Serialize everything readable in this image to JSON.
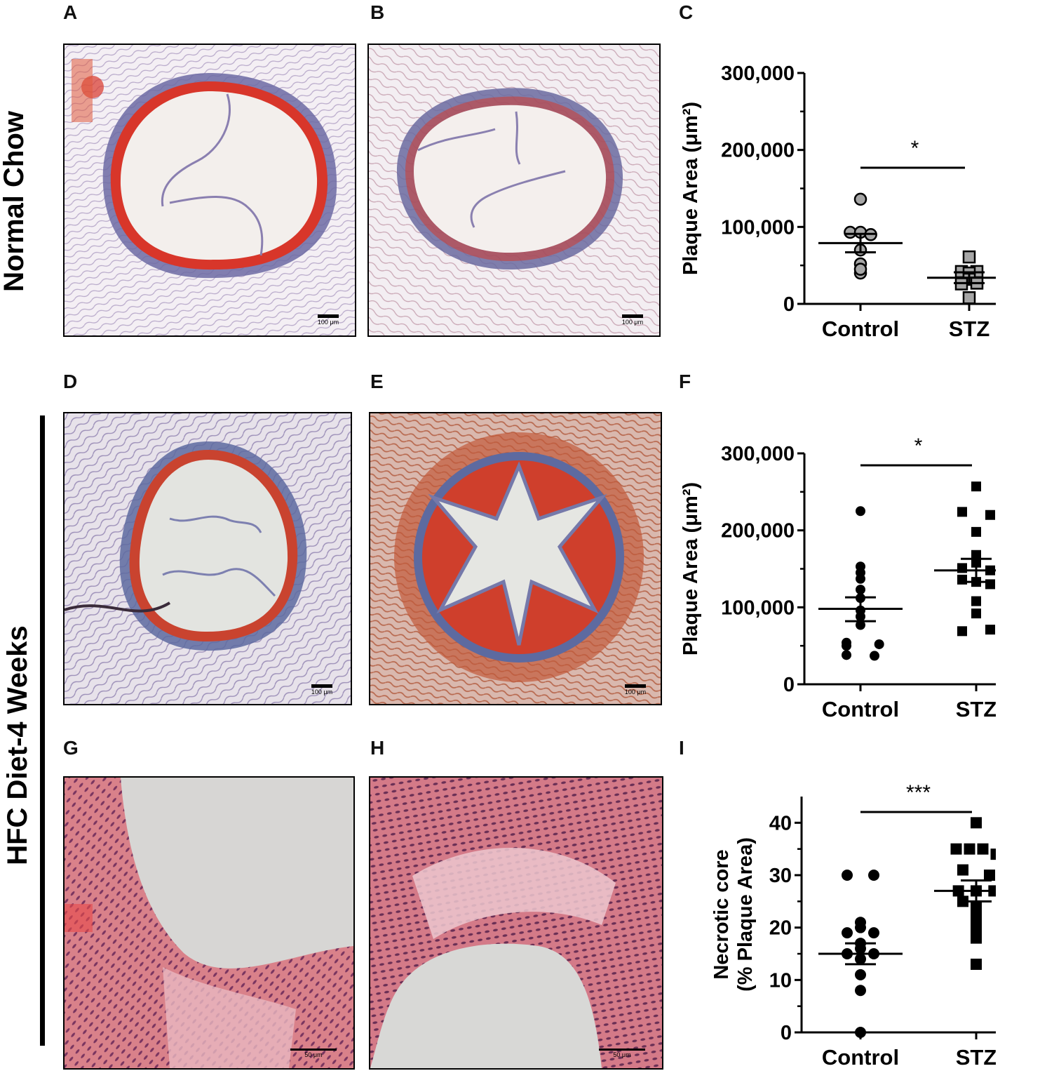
{
  "panels": {
    "A": "A",
    "B": "B",
    "C": "C",
    "D": "D",
    "E": "E",
    "F": "F",
    "G": "G",
    "H": "H",
    "I": "I"
  },
  "row_labels": {
    "row1": "Normal Chow",
    "rows23": "HFC Diet-4 Weeks"
  },
  "scale_bars": {
    "A": "100 μm",
    "B": "100 μm",
    "D": "100 μm",
    "E": "100 μm",
    "G": "50 μm",
    "H": "50 μm"
  },
  "chart_data": [
    {
      "panel": "C",
      "type": "scatter",
      "ylabel": "Plaque Area (μm²)",
      "categories": [
        "Control",
        "STZ"
      ],
      "ylim": [
        0,
        300000
      ],
      "yticks": [
        "0",
        "100,000",
        "200,000",
        "300,000"
      ],
      "ytick_values": [
        0,
        100000,
        200000,
        300000
      ],
      "significance": "*",
      "series": [
        {
          "category": "Control",
          "marker": "circle",
          "color": "#a6a6a6",
          "values": [
            136000,
            93000,
            93000,
            90000,
            70000,
            52000,
            40000,
            45000
          ],
          "mean": 79000,
          "sem_low": 67000,
          "sem_high": 91000
        },
        {
          "category": "STZ",
          "marker": "square",
          "color": "#a6a6a6",
          "values": [
            61000,
            42000,
            42000,
            40000,
            32000,
            26000,
            27000,
            8000
          ],
          "mean": 34000,
          "sem_low": 27000,
          "sem_high": 41000
        }
      ]
    },
    {
      "panel": "F",
      "type": "scatter",
      "ylabel": "Plaque Area (μm²)",
      "categories": [
        "Control",
        "STZ"
      ],
      "ylim": [
        0,
        300000
      ],
      "yticks": [
        "0",
        "100,000",
        "200,000",
        "300,000"
      ],
      "ytick_values": [
        0,
        100000,
        200000,
        300000
      ],
      "significance": "*",
      "series": [
        {
          "category": "Control",
          "marker": "circle",
          "color": "#000000",
          "values": [
            225000,
            153000,
            145000,
            137000,
            123000,
            112000,
            96000,
            88000,
            77000,
            50000,
            54000,
            52000,
            38000,
            37000
          ],
          "mean": 98000,
          "sem_low": 82000,
          "sem_high": 113000
        },
        {
          "category": "STZ",
          "marker": "square",
          "color": "#000000",
          "values": [
            257000,
            224000,
            220000,
            198000,
            168000,
            158000,
            151000,
            148000,
            136000,
            133000,
            130000,
            108000,
            92000,
            69000,
            71000
          ],
          "mean": 148000,
          "sem_low": 133000,
          "sem_high": 163000
        }
      ]
    },
    {
      "panel": "I",
      "type": "scatter",
      "ylabel": "Necrotic core\n(% Plaque Area)",
      "ylabel_lines": [
        "Necrotic core",
        "(% Plaque Area)"
      ],
      "categories": [
        "Control",
        "STZ"
      ],
      "ylim": [
        0,
        45
      ],
      "yticks": [
        "0",
        "10",
        "20",
        "30",
        "40"
      ],
      "ytick_values": [
        0,
        10,
        20,
        30,
        40
      ],
      "significance": "***",
      "series": [
        {
          "category": "Control",
          "marker": "circle",
          "color": "#000000",
          "values": [
            30,
            30,
            21,
            20,
            19,
            19,
            17,
            16,
            15,
            15,
            14,
            11,
            8,
            0
          ],
          "mean": 15,
          "sem_low": 13,
          "sem_high": 17
        },
        {
          "category": "STZ",
          "marker": "square",
          "color": "#000000",
          "values": [
            40,
            35,
            35,
            35,
            34,
            31,
            30,
            27,
            27,
            27,
            25,
            24,
            22,
            20,
            18,
            13
          ],
          "mean": 27,
          "sem_low": 25,
          "sem_high": 29
        }
      ]
    }
  ]
}
